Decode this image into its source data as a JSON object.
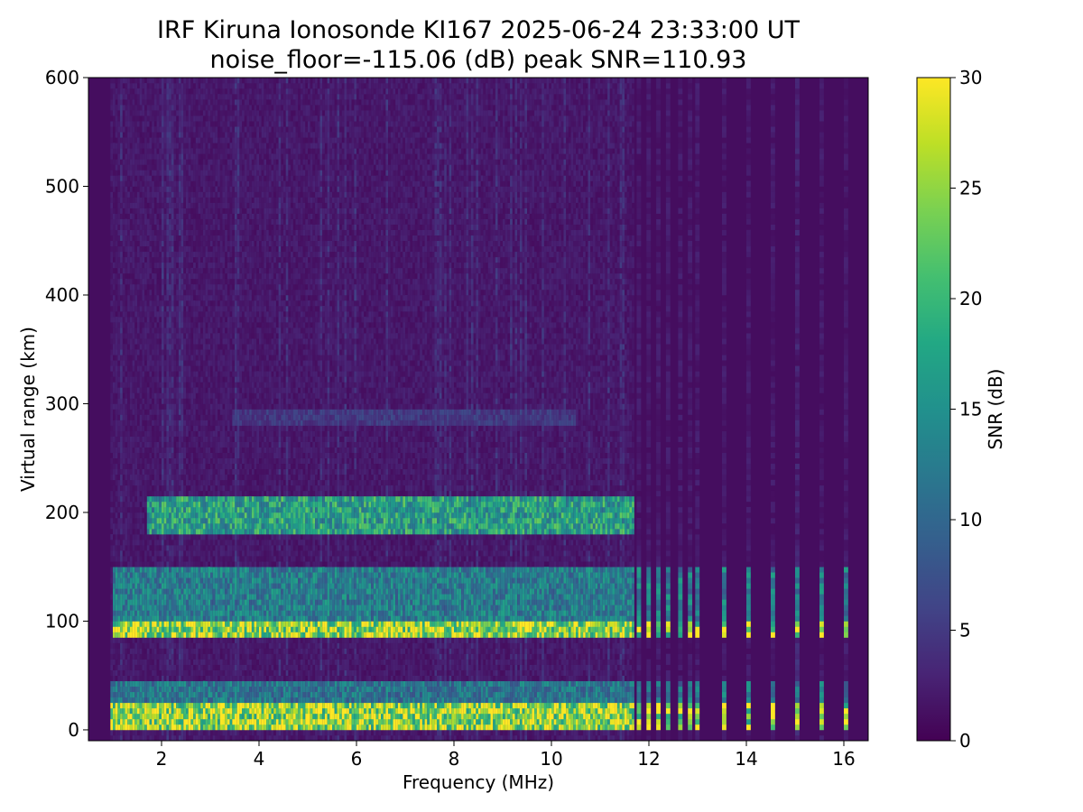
{
  "chart_data": {
    "type": "heatmap",
    "title": "IRF Kiruna Ionosonde KI167 2025-06-24 23:33:00  UT",
    "subtitle": "noise_floor=-115.06 (dB) peak SNR=110.93",
    "xlabel": "Frequency (MHz)",
    "ylabel": "Virtual range (km)",
    "xlim": [
      0.5,
      16.5
    ],
    "ylim": [
      -10,
      600
    ],
    "xticks": [
      "2",
      "4",
      "6",
      "8",
      "10",
      "12",
      "14",
      "16"
    ],
    "yticks": [
      "0",
      "100",
      "200",
      "300",
      "400",
      "500",
      "600"
    ],
    "grid": false,
    "colormap": "viridis",
    "colorbar": {
      "label": "SNR (dB)",
      "range": [
        0,
        30
      ],
      "ticks": [
        "0",
        "5",
        "10",
        "15",
        "20",
        "25",
        "30"
      ]
    },
    "data_frequency_range_mhz": [
      0.95,
      16.2
    ],
    "dense_sweep_end_mhz": 11.7,
    "sparse_frequencies_mhz": [
      11.75,
      11.95,
      12.15,
      12.35,
      12.6,
      12.8,
      12.95,
      13.5,
      14.0,
      14.5,
      15.0,
      15.5,
      16.0
    ],
    "echo_layers": [
      {
        "range_km": [
          0,
          25
        ],
        "snr_db": 30,
        "extent_mhz": [
          0.95,
          11.7
        ]
      },
      {
        "range_km": [
          25,
          45
        ],
        "snr_db": 14,
        "extent_mhz": [
          0.95,
          11.7
        ]
      },
      {
        "range_km": [
          85,
          100
        ],
        "snr_db": 30,
        "extent_mhz": [
          1.0,
          11.7
        ]
      },
      {
        "range_km": [
          100,
          150
        ],
        "snr_db": 15,
        "extent_mhz": [
          1.0,
          11.7
        ]
      },
      {
        "range_km": [
          180,
          215
        ],
        "snr_db": 20,
        "extent_mhz": [
          1.7,
          11.7
        ]
      },
      {
        "range_km": [
          278,
          292
        ],
        "snr_db": 6,
        "extent_mhz": [
          3.4,
          10.5
        ]
      }
    ],
    "background_snr_db": 1
  }
}
